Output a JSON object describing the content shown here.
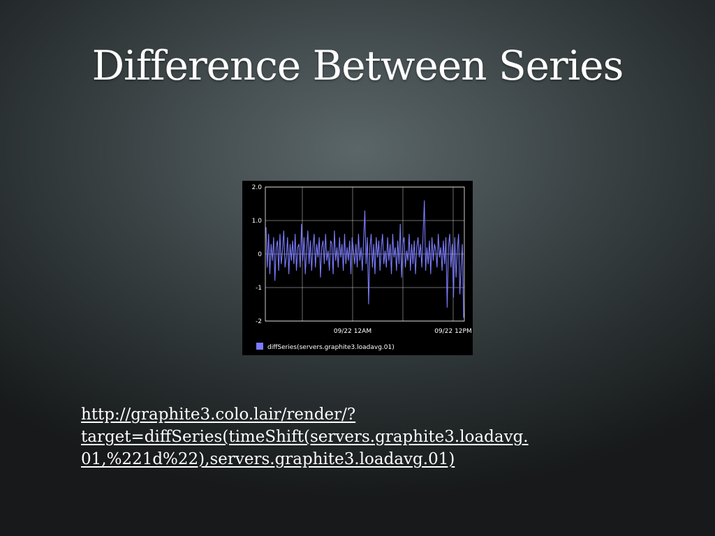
{
  "slide": {
    "title": "Difference Between Series",
    "url_lines": [
      "http://graphite3.colo.lair/render/?",
      "target=diffSeries(timeShift(servers.graphite3.loadavg.",
      "01,%221d%22),servers.graphite3.loadavg.01)"
    ]
  },
  "colors": {
    "chart_background": "#000000",
    "grid": "#ffffff",
    "series": "#7b7bff",
    "text": "#ffffff"
  },
  "chart_data": {
    "type": "line",
    "title": "",
    "xlabel": "",
    "ylabel": "",
    "ylim": [
      -2,
      2
    ],
    "y_ticks": [
      "2.0",
      "1.0",
      "0",
      "-1",
      "-2"
    ],
    "x_ticks": [
      "09/22 12AM",
      "09/22 12PM"
    ],
    "grid": true,
    "legend_position": "bottom-left",
    "series": [
      {
        "name": "diffSeries(servers.graphite3.loadavg.01)",
        "values": [
          0.8,
          -0.4,
          0.6,
          -0.6,
          0.3,
          -0.2,
          0.5,
          -0.8,
          0.2,
          0.4,
          -0.5,
          0.6,
          -0.3,
          0.1,
          0.7,
          -0.4,
          -0.1,
          0.5,
          -0.6,
          0.3,
          -0.2,
          0.4,
          -0.3,
          0.6,
          -0.5,
          0.2,
          0.3,
          -0.4,
          0.9,
          -0.2,
          0.5,
          -0.6,
          0.1,
          0.7,
          -0.3,
          0.4,
          -0.5,
          0.2,
          0.6,
          -0.4,
          0.3,
          -0.1,
          0.5,
          -0.7,
          0.2,
          0.4,
          -0.3,
          0.6,
          -0.2,
          0.1,
          -0.5,
          0.4,
          0.3,
          -0.6,
          0.7,
          -0.2,
          0.2,
          -0.4,
          0.5,
          -0.1,
          0.3,
          -0.5,
          0.6,
          -0.3,
          0.2,
          -0.2,
          0.4,
          -0.6,
          0.5,
          0.1,
          -0.3,
          0.3,
          -0.4,
          0.6,
          -0.2,
          0.2,
          -0.5,
          0.4,
          1.3,
          -0.3,
          0.5,
          -1.5,
          0.2,
          0.6,
          -0.4,
          0.3,
          -0.6,
          0.5,
          -0.1,
          0.4,
          -0.5,
          0.2,
          0.6,
          -0.3,
          0.1,
          -0.4,
          0.5,
          -0.2,
          0.3,
          -0.6,
          0.6,
          -0.1,
          0.2,
          -0.5,
          0.4,
          -0.3,
          0.9,
          -0.7,
          0.3,
          0.5,
          -0.4,
          0.1,
          -0.2,
          0.6,
          -0.5,
          0.3,
          -0.3,
          0.4,
          -0.6,
          0.2,
          0.5,
          -0.1,
          0.3,
          -0.4,
          0.6,
          1.6,
          -0.5,
          0.2,
          -0.3,
          0.4,
          -0.6,
          0.5,
          -0.2,
          0.3,
          0.1,
          -0.4,
          0.6,
          -0.1,
          0.2,
          -0.5,
          0.4,
          -0.3,
          0.5,
          -1.6,
          0.2,
          0.6,
          -0.4,
          0.3,
          -1.3,
          0.5,
          -0.7,
          0.1,
          0.6,
          -1.2,
          -0.4,
          0.3,
          -1.9
        ]
      }
    ]
  }
}
